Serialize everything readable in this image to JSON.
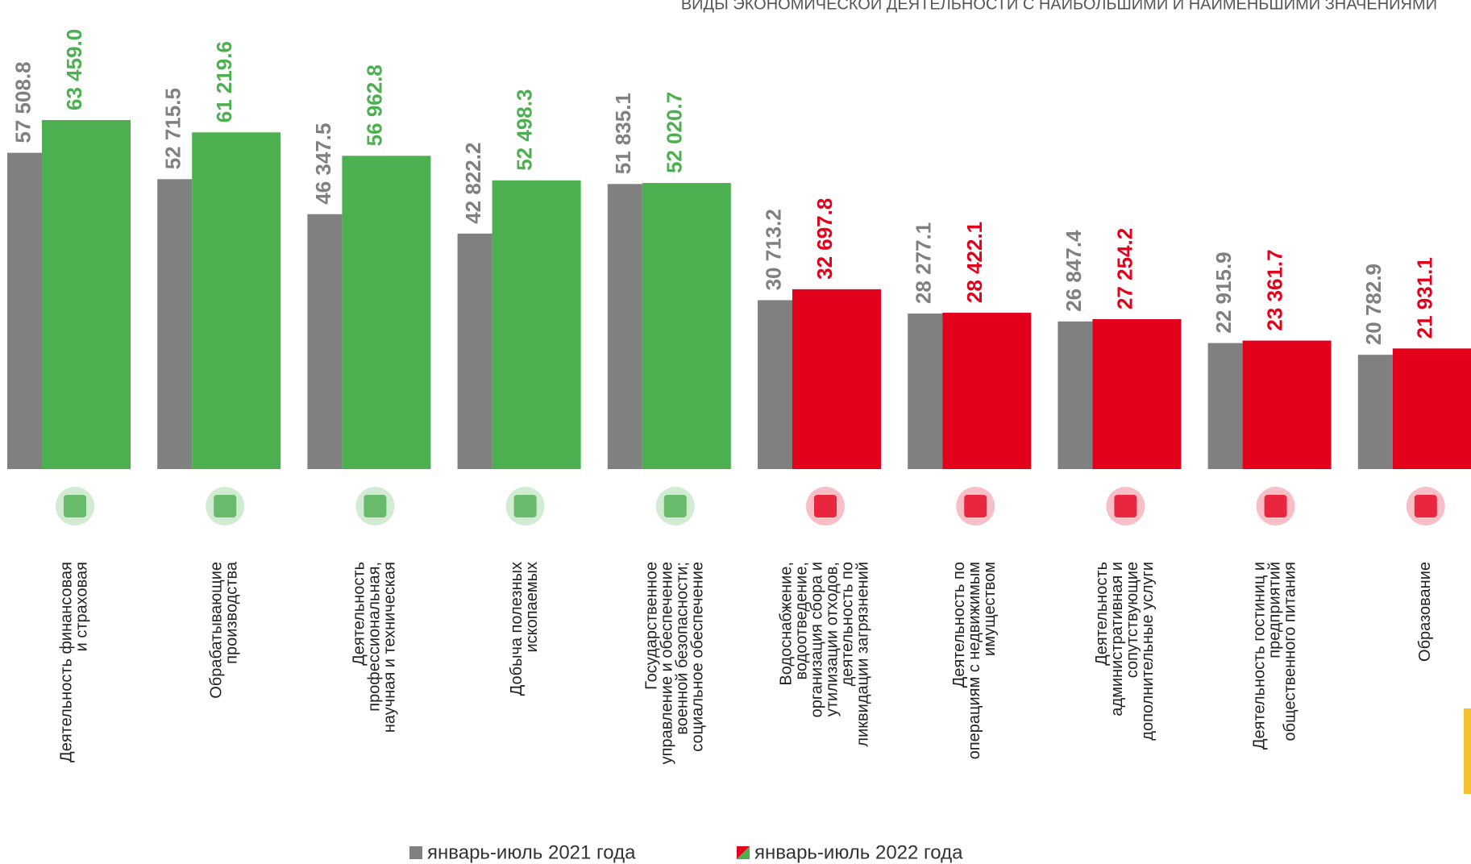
{
  "chart_data": {
    "type": "bar",
    "title": "ВИДЫ ЭКОНОМИЧЕСКОЙ ДЕЯТЕЛЬНОСТИ С НАИБОЛЬШИМИ И НАИМЕНЬШИМИ ЗНАЧЕНИЯМИ",
    "categories": [
      "Деятельность финансовая\nи страховая",
      "Обрабатывающие\nпроизводства",
      "Деятельность\nпрофессиональная,\nнаучная и техническая",
      "Добыча полезных\nископаемых",
      "Государственное\nуправление и обеспечение\nвоенной безопасности;\nсоциальное обеспечение",
      "Водоснабжение,\nводоотведение,\nорганизация сбора и\nутилизации отходов,\nдеятельность по\nликвидации загрязнений",
      "Деятельность по\nоперациям с недвижимым\nимуществом",
      "Деятельность\nадминистративная и\nсопутствующие\nдополнительные услуги",
      "Деятельность гостиниц  и\nпредприятий\nобщественного питания",
      "Образование"
    ],
    "series": [
      {
        "name": "январь-июль 2021 года",
        "color": "#808080",
        "values": [
          57508.8,
          52715.5,
          46347.5,
          42822.2,
          51835.1,
          30713.2,
          28277.1,
          26847.4,
          22915.9,
          20782.9
        ],
        "value_labels": [
          "57 508.8",
          "52 715.5",
          "46 347.5",
          "42 822.2",
          "51 835.1",
          "30 713.2",
          "28 277.1",
          "26 847.4",
          "22 915.9",
          "20 782.9"
        ]
      },
      {
        "name": "январь-июль 2022 года",
        "color": "#4caf50",
        "colors": [
          "#4caf50",
          "#4caf50",
          "#4caf50",
          "#4caf50",
          "#4caf50",
          "#e3001b",
          "#e3001b",
          "#e3001b",
          "#e3001b",
          "#e3001b"
        ],
        "values": [
          63459.0,
          61219.6,
          56962.8,
          52498.3,
          52020.7,
          32697.8,
          28422.1,
          27254.2,
          23361.7,
          21931.1
        ],
        "value_labels": [
          "63 459.0",
          "61 219.6",
          "56 962.8",
          "52 498.3",
          "52 020.7",
          "32 697.8",
          "28 422.1",
          "27 254.2",
          "23 361.7",
          "21 931.1"
        ]
      }
    ],
    "ylim": [
      0,
      85000
    ]
  }
}
